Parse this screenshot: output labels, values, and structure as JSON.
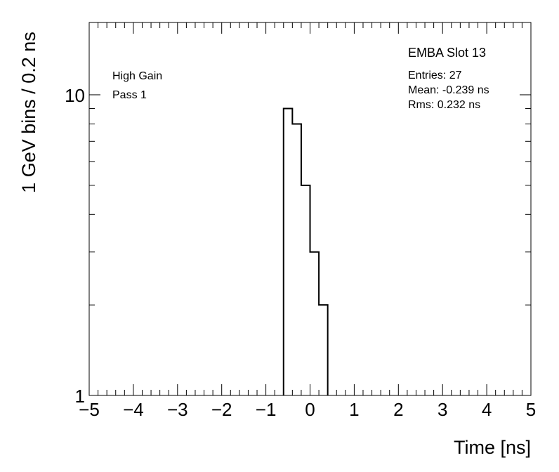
{
  "chart_data": {
    "type": "bar",
    "histogram": true,
    "xlabel": "Time [ns]",
    "ylabel": "1 GeV bins / 0.2 ns",
    "xlim": [
      -5,
      5
    ],
    "ylim": [
      1,
      17.4
    ],
    "y_scale": "log",
    "grid": false,
    "x_tick_labels": [
      "−5",
      "−4",
      "−3",
      "−2",
      "−1",
      "0",
      "1",
      "2",
      "3",
      "4",
      "5"
    ],
    "x_ticks": [
      -5,
      -4,
      -3,
      -2,
      -1,
      0,
      1,
      2,
      3,
      4,
      5
    ],
    "y_tick_labels": [
      "1",
      "10"
    ],
    "y_ticks": [
      1,
      10
    ],
    "bin_edges": [
      -0.6,
      -0.4,
      -0.2,
      0.0,
      0.2,
      0.4
    ],
    "values": [
      9,
      8,
      5,
      3,
      2
    ],
    "line_color": "#000000",
    "annotations": {
      "title": "EMBA Slot 13",
      "gain": "High Gain",
      "pass": "Pass 1",
      "entries": "Entries: 27",
      "mean": "Mean: -0.239 ns",
      "rms": "Rms: 0.232 ns"
    }
  }
}
